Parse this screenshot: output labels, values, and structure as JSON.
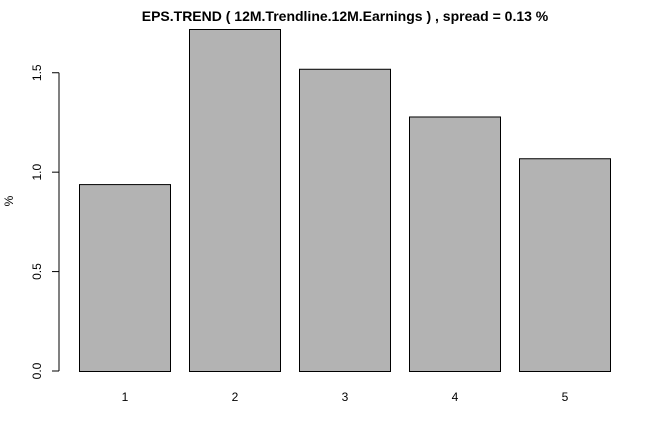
{
  "chart_data": {
    "type": "bar",
    "title": "EPS.TREND ( 12M.Trendline.12M.Earnings ) , spread = 0.13 %",
    "xlabel": "",
    "ylabel": "%",
    "categories": [
      "1",
      "2",
      "3",
      "4",
      "5"
    ],
    "values": [
      0.94,
      1.72,
      1.52,
      1.28,
      1.07
    ],
    "ylim": [
      0,
      1.72
    ],
    "yticks": [
      0.0,
      0.5,
      1.0,
      1.5
    ],
    "ytick_labels": [
      "0.0",
      "0.5",
      "1.0",
      "1.5"
    ],
    "bar_color": "#b3b3b3",
    "border_color": "#000000",
    "grid": false,
    "legend": "none"
  }
}
